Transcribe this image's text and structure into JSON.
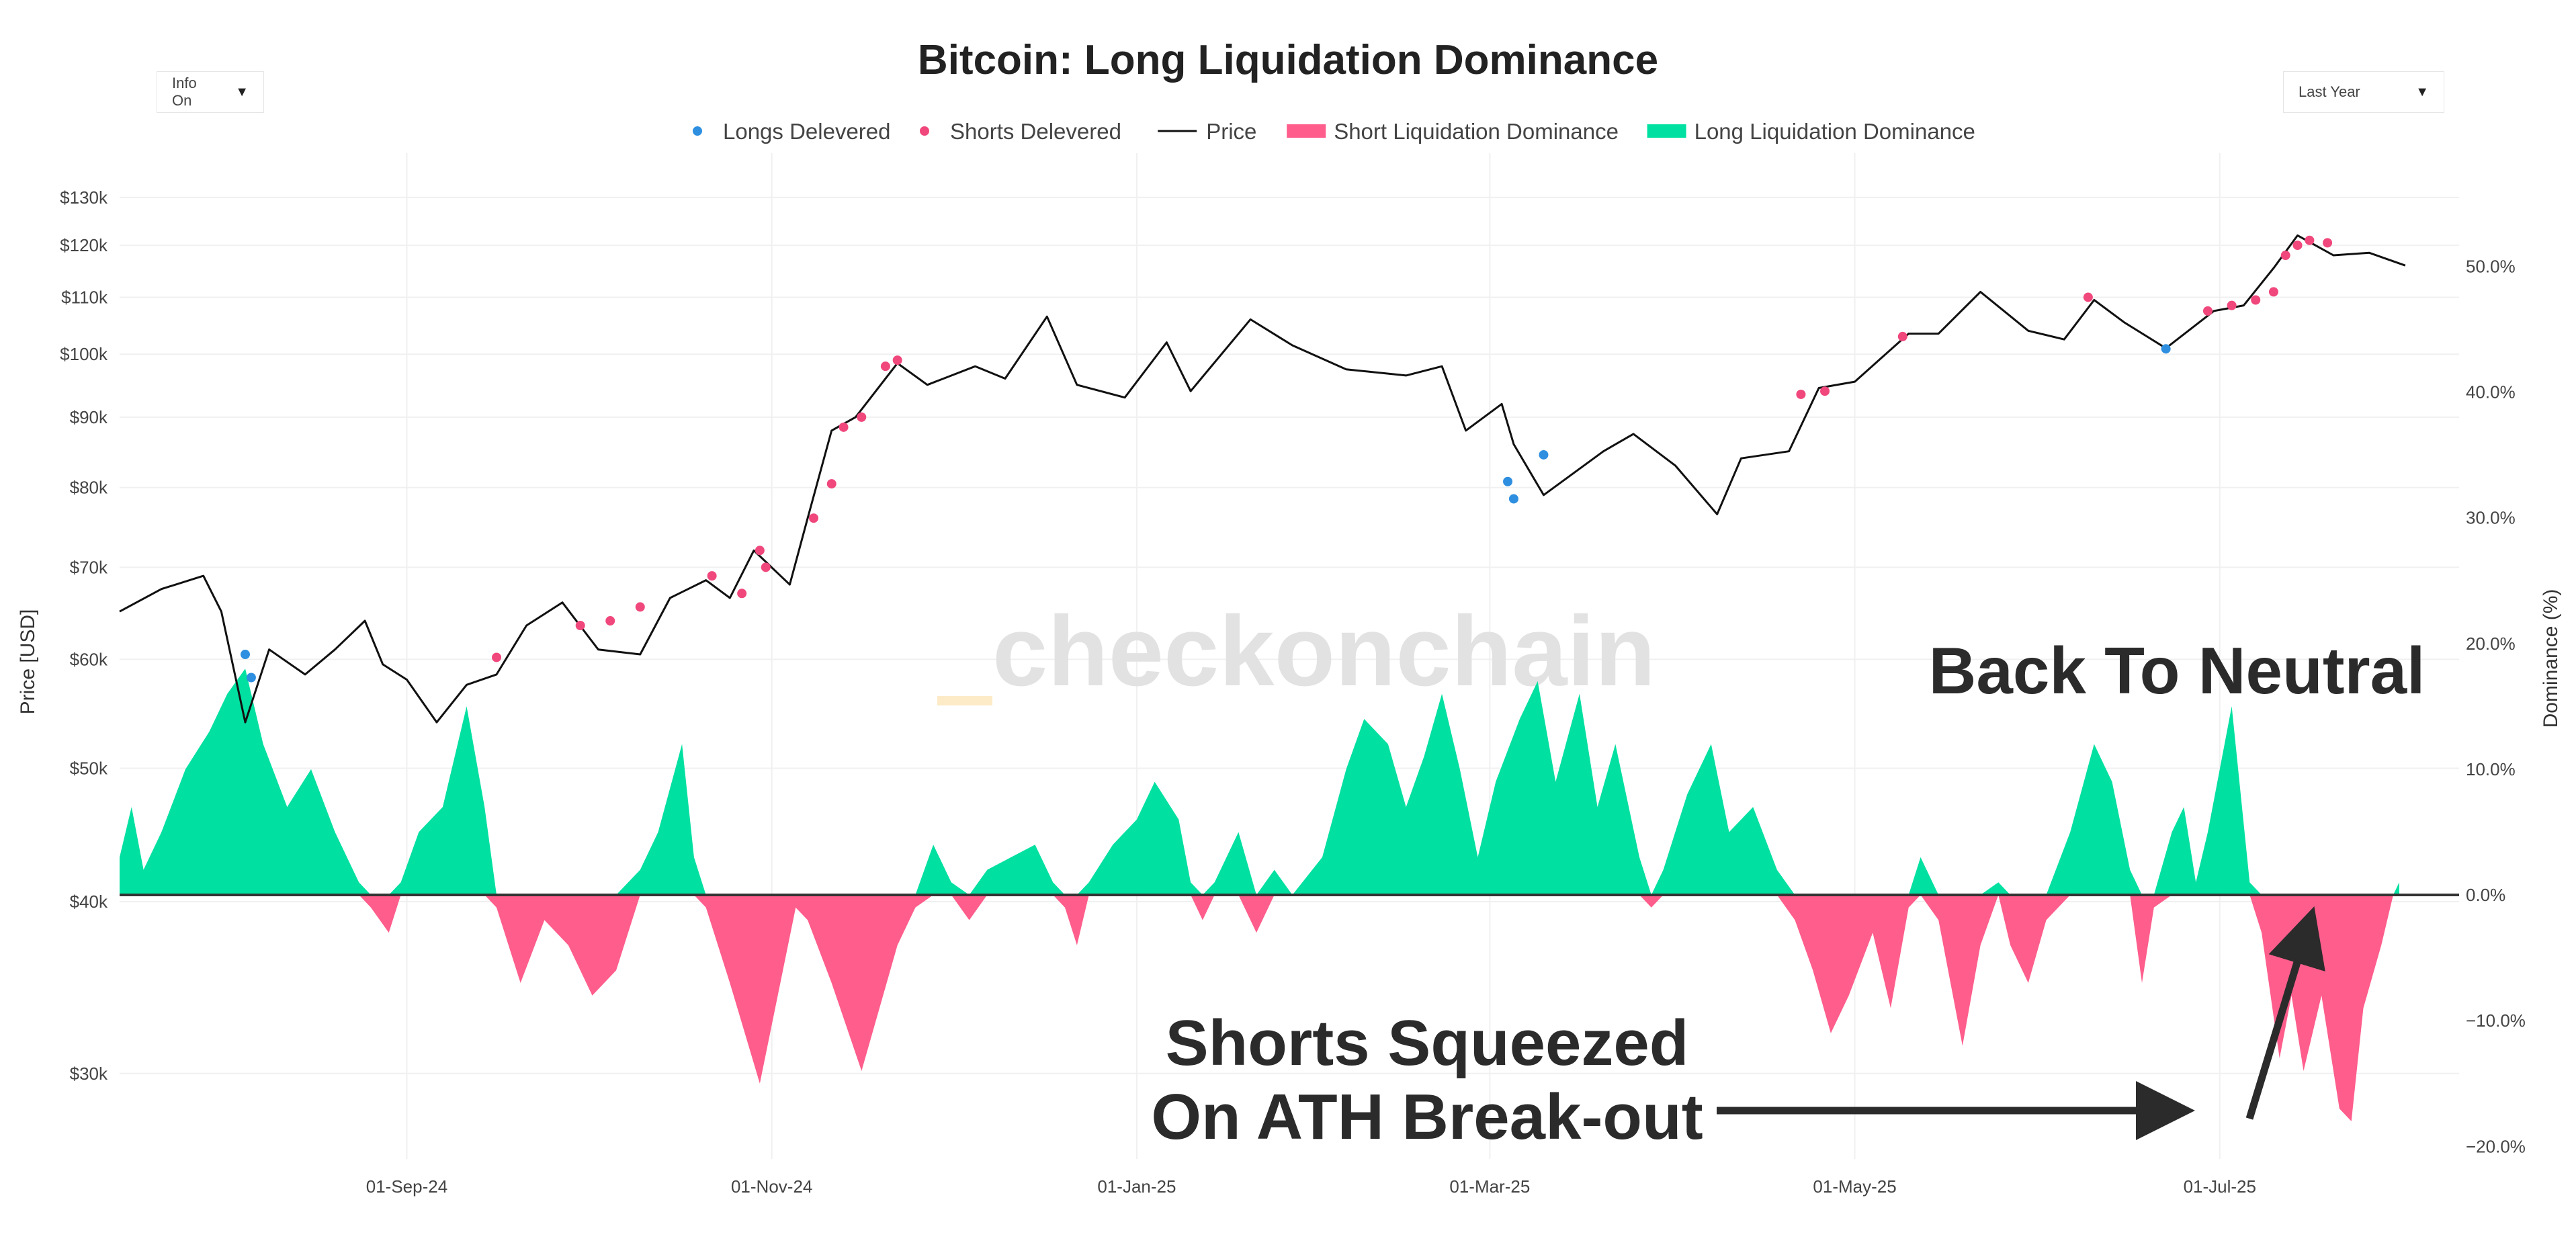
{
  "controls": {
    "info_dropdown": {
      "label": "Info On",
      "caret": "▼"
    },
    "range_dropdown": {
      "label": "Last Year",
      "caret": "▼"
    }
  },
  "watermark": {
    "text": "checkonchain",
    "accent_color": "#fdebc8"
  },
  "annotations": {
    "back_to_neutral": "Back To Neutral",
    "shorts_squeezed_line1": "Shorts Squeezed",
    "shorts_squeezed_line2": "On ATH Break-out"
  },
  "colors": {
    "price": "#111111",
    "longs_delivered": "#2e8fe0",
    "shorts_delivered": "#f0477c",
    "short_dominance": "#ff5d8c",
    "long_dominance": "#00e0a1",
    "grid": "#f0f0f0",
    "zero_line": "#333333",
    "annotation": "#2b2b2b"
  },
  "chart_data": {
    "type": "line",
    "title": "Bitcoin: Long Liquidation Dominance",
    "ylabel": "Price [USD]",
    "y2label": "Dominance (%)",
    "yscale": "log",
    "ylim": [
      26000,
      140000
    ],
    "y2lim": [
      -21,
      59
    ],
    "x_start": "2024-07-15",
    "x_end": "2025-08-10",
    "x_ticks": [
      {
        "date": "2024-09-01",
        "label": "01-Sep-24"
      },
      {
        "date": "2024-11-01",
        "label": "01-Nov-24"
      },
      {
        "date": "2025-01-01",
        "label": "01-Jan-25"
      },
      {
        "date": "2025-03-01",
        "label": "01-Mar-25"
      },
      {
        "date": "2025-05-01",
        "label": "01-May-25"
      },
      {
        "date": "2025-07-01",
        "label": "01-Jul-25"
      }
    ],
    "y_ticks": [
      {
        "value": 30000,
        "label": "$30k"
      },
      {
        "value": 40000,
        "label": "$40k"
      },
      {
        "value": 50000,
        "label": "$50k"
      },
      {
        "value": 60000,
        "label": "$60k"
      },
      {
        "value": 70000,
        "label": "$70k"
      },
      {
        "value": 80000,
        "label": "$80k"
      },
      {
        "value": 90000,
        "label": "$90k"
      },
      {
        "value": 100000,
        "label": "$100k"
      },
      {
        "value": 110000,
        "label": "$110k"
      },
      {
        "value": 120000,
        "label": "$120k"
      },
      {
        "value": 130000,
        "label": "$130k"
      }
    ],
    "y2_ticks": [
      {
        "value": -20,
        "label": "−20.0%"
      },
      {
        "value": -10,
        "label": "−10.0%"
      },
      {
        "value": 0,
        "label": "0.0%"
      },
      {
        "value": 10,
        "label": "10.0%"
      },
      {
        "value": 20,
        "label": "20.0%"
      },
      {
        "value": 30,
        "label": "30.0%"
      },
      {
        "value": 40,
        "label": "40.0%"
      },
      {
        "value": 50,
        "label": "50.0%"
      }
    ],
    "legend": [
      {
        "label": "Longs Delevered",
        "symbol": "dot",
        "color": "#2e8fe0"
      },
      {
        "label": "Shorts Delevered",
        "symbol": "dot",
        "color": "#f0477c"
      },
      {
        "label": "Price",
        "symbol": "line",
        "color": "#111111"
      },
      {
        "label": "Short Liquidation Dominance",
        "symbol": "bar",
        "color": "#ff5d8c"
      },
      {
        "label": "Long Liquidation Dominance",
        "symbol": "bar",
        "color": "#00e0a1"
      }
    ],
    "price_series": [
      [
        "2024-07-15",
        65000
      ],
      [
        "2024-07-22",
        67500
      ],
      [
        "2024-07-29",
        69000
      ],
      [
        "2024-08-01",
        65000
      ],
      [
        "2024-08-05",
        54000
      ],
      [
        "2024-08-09",
        61000
      ],
      [
        "2024-08-15",
        58500
      ],
      [
        "2024-08-20",
        61000
      ],
      [
        "2024-08-25",
        64000
      ],
      [
        "2024-08-28",
        59500
      ],
      [
        "2024-09-01",
        58000
      ],
      [
        "2024-09-06",
        54000
      ],
      [
        "2024-09-11",
        57500
      ],
      [
        "2024-09-16",
        58500
      ],
      [
        "2024-09-21",
        63500
      ],
      [
        "2024-09-27",
        66000
      ],
      [
        "2024-10-03",
        61000
      ],
      [
        "2024-10-10",
        60500
      ],
      [
        "2024-10-15",
        66500
      ],
      [
        "2024-10-21",
        68500
      ],
      [
        "2024-10-25",
        66500
      ],
      [
        "2024-10-29",
        72000
      ],
      [
        "2024-11-04",
        68000
      ],
      [
        "2024-11-07",
        76000
      ],
      [
        "2024-11-11",
        88000
      ],
      [
        "2024-11-15",
        90000
      ],
      [
        "2024-11-22",
        98500
      ],
      [
        "2024-11-27",
        95000
      ],
      [
        "2024-12-05",
        98000
      ],
      [
        "2024-12-10",
        96000
      ],
      [
        "2024-12-17",
        106500
      ],
      [
        "2024-12-22",
        95000
      ],
      [
        "2024-12-30",
        93000
      ],
      [
        "2025-01-06",
        102000
      ],
      [
        "2025-01-10",
        94000
      ],
      [
        "2025-01-20",
        106000
      ],
      [
        "2025-01-27",
        101500
      ],
      [
        "2025-02-05",
        97500
      ],
      [
        "2025-02-15",
        96500
      ],
      [
        "2025-02-21",
        98000
      ],
      [
        "2025-02-25",
        88000
      ],
      [
        "2025-03-03",
        92000
      ],
      [
        "2025-03-05",
        86000
      ],
      [
        "2025-03-10",
        79000
      ],
      [
        "2025-03-20",
        85000
      ],
      [
        "2025-03-25",
        87500
      ],
      [
        "2025-04-01",
        83000
      ],
      [
        "2025-04-08",
        76500
      ],
      [
        "2025-04-12",
        84000
      ],
      [
        "2025-04-20",
        85000
      ],
      [
        "2025-04-25",
        94500
      ],
      [
        "2025-05-01",
        95500
      ],
      [
        "2025-05-10",
        103500
      ],
      [
        "2025-05-15",
        103500
      ],
      [
        "2025-05-22",
        111000
      ],
      [
        "2025-05-30",
        104000
      ],
      [
        "2025-06-05",
        102500
      ],
      [
        "2025-06-10",
        109500
      ],
      [
        "2025-06-15",
        105500
      ],
      [
        "2025-06-22",
        101000
      ],
      [
        "2025-06-30",
        107500
      ],
      [
        "2025-07-05",
        108500
      ],
      [
        "2025-07-10",
        115500
      ],
      [
        "2025-07-14",
        122000
      ],
      [
        "2025-07-20",
        118000
      ],
      [
        "2025-07-26",
        118500
      ],
      [
        "2025-08-01",
        116000
      ]
    ],
    "dominance_series": [
      [
        "2024-07-15",
        3
      ],
      [
        "2024-07-17",
        7
      ],
      [
        "2024-07-19",
        2
      ],
      [
        "2024-07-22",
        5
      ],
      [
        "2024-07-26",
        10
      ],
      [
        "2024-07-30",
        13
      ],
      [
        "2024-08-02",
        16
      ],
      [
        "2024-08-05",
        18
      ],
      [
        "2024-08-08",
        12
      ],
      [
        "2024-08-12",
        7
      ],
      [
        "2024-08-16",
        10
      ],
      [
        "2024-08-20",
        5
      ],
      [
        "2024-08-24",
        1
      ],
      [
        "2024-08-26",
        -1
      ],
      [
        "2024-08-29",
        -3
      ],
      [
        "2024-08-31",
        1
      ],
      [
        "2024-09-03",
        5
      ],
      [
        "2024-09-07",
        7
      ],
      [
        "2024-09-11",
        15
      ],
      [
        "2024-09-14",
        7
      ],
      [
        "2024-09-16",
        -1
      ],
      [
        "2024-09-20",
        -7
      ],
      [
        "2024-09-24",
        -2
      ],
      [
        "2024-09-28",
        -4
      ],
      [
        "2024-10-02",
        -8
      ],
      [
        "2024-10-06",
        -6
      ],
      [
        "2024-10-10",
        2
      ],
      [
        "2024-10-13",
        5
      ],
      [
        "2024-10-17",
        12
      ],
      [
        "2024-10-19",
        3
      ],
      [
        "2024-10-21",
        -1
      ],
      [
        "2024-10-25",
        -7
      ],
      [
        "2024-10-30",
        -15
      ],
      [
        "2024-11-02",
        -8
      ],
      [
        "2024-11-05",
        -1
      ],
      [
        "2024-11-07",
        -2
      ],
      [
        "2024-11-11",
        -7
      ],
      [
        "2024-11-16",
        -14
      ],
      [
        "2024-11-22",
        -4
      ],
      [
        "2024-11-25",
        -1
      ],
      [
        "2024-11-28",
        4
      ],
      [
        "2024-12-01",
        1
      ],
      [
        "2024-12-04",
        -2
      ],
      [
        "2024-12-07",
        2
      ],
      [
        "2024-12-11",
        3
      ],
      [
        "2024-12-15",
        4
      ],
      [
        "2024-12-18",
        1
      ],
      [
        "2024-12-20",
        -1
      ],
      [
        "2024-12-22",
        -4
      ],
      [
        "2024-12-24",
        1
      ],
      [
        "2024-12-28",
        4
      ],
      [
        "2025-01-01",
        6
      ],
      [
        "2025-01-04",
        9
      ],
      [
        "2025-01-08",
        6
      ],
      [
        "2025-01-10",
        1
      ],
      [
        "2025-01-12",
        -2
      ],
      [
        "2025-01-14",
        1
      ],
      [
        "2025-01-18",
        5
      ],
      [
        "2025-01-21",
        -3
      ],
      [
        "2025-01-24",
        2
      ],
      [
        "2025-01-27",
        0
      ],
      [
        "2025-02-01",
        3
      ],
      [
        "2025-02-05",
        10
      ],
      [
        "2025-02-08",
        14
      ],
      [
        "2025-02-12",
        12
      ],
      [
        "2025-02-15",
        7
      ],
      [
        "2025-02-18",
        11
      ],
      [
        "2025-02-21",
        16
      ],
      [
        "2025-02-24",
        10
      ],
      [
        "2025-02-27",
        3
      ],
      [
        "2025-03-02",
        9
      ],
      [
        "2025-03-06",
        14
      ],
      [
        "2025-03-09",
        17
      ],
      [
        "2025-03-12",
        9
      ],
      [
        "2025-03-16",
        16
      ],
      [
        "2025-03-19",
        7
      ],
      [
        "2025-03-22",
        12
      ],
      [
        "2025-03-26",
        3
      ],
      [
        "2025-03-28",
        -1
      ],
      [
        "2025-03-30",
        2
      ],
      [
        "2025-04-03",
        8
      ],
      [
        "2025-04-07",
        12
      ],
      [
        "2025-04-10",
        5
      ],
      [
        "2025-04-14",
        7
      ],
      [
        "2025-04-18",
        2
      ],
      [
        "2025-04-21",
        -2
      ],
      [
        "2025-04-24",
        -6
      ],
      [
        "2025-04-27",
        -11
      ],
      [
        "2025-04-30",
        -8
      ],
      [
        "2025-05-04",
        -3
      ],
      [
        "2025-05-07",
        -9
      ],
      [
        "2025-05-10",
        -1
      ],
      [
        "2025-05-12",
        3
      ],
      [
        "2025-05-15",
        -2
      ],
      [
        "2025-05-19",
        -12
      ],
      [
        "2025-05-22",
        -4
      ],
      [
        "2025-05-25",
        1
      ],
      [
        "2025-05-27",
        -4
      ],
      [
        "2025-05-30",
        -7
      ],
      [
        "2025-06-02",
        -2
      ],
      [
        "2025-06-06",
        5
      ],
      [
        "2025-06-10",
        12
      ],
      [
        "2025-06-13",
        9
      ],
      [
        "2025-06-16",
        2
      ],
      [
        "2025-06-18",
        -7
      ],
      [
        "2025-06-20",
        -1
      ],
      [
        "2025-06-23",
        5
      ],
      [
        "2025-06-25",
        7
      ],
      [
        "2025-06-27",
        1
      ],
      [
        "2025-06-29",
        5
      ],
      [
        "2025-07-03",
        15
      ],
      [
        "2025-07-06",
        1
      ],
      [
        "2025-07-08",
        -3
      ],
      [
        "2025-07-11",
        -13
      ],
      [
        "2025-07-13",
        -8
      ],
      [
        "2025-07-15",
        -14
      ],
      [
        "2025-07-18",
        -8
      ],
      [
        "2025-07-21",
        -17
      ],
      [
        "2025-07-23",
        -18
      ],
      [
        "2025-07-25",
        -9
      ],
      [
        "2025-07-28",
        -4
      ],
      [
        "2025-07-30",
        0
      ],
      [
        "2025-07-31",
        1
      ]
    ],
    "longs_delevered_points": [
      [
        "2024-08-05",
        60500
      ],
      [
        "2024-08-06",
        58200
      ],
      [
        "2025-03-10",
        84500
      ],
      [
        "2025-03-04",
        80800
      ],
      [
        "2025-03-05",
        78500
      ],
      [
        "2025-06-22",
        100900
      ]
    ],
    "shorts_delevered_points": [
      [
        "2024-09-16",
        60200
      ],
      [
        "2024-09-30",
        63500
      ],
      [
        "2024-10-05",
        64000
      ],
      [
        "2024-10-10",
        65500
      ],
      [
        "2024-10-22",
        69000
      ],
      [
        "2024-10-27",
        67000
      ],
      [
        "2024-10-30",
        72000
      ],
      [
        "2024-10-31",
        70000
      ],
      [
        "2024-11-08",
        76000
      ],
      [
        "2024-11-11",
        80500
      ],
      [
        "2024-11-13",
        88500
      ],
      [
        "2024-11-16",
        90000
      ],
      [
        "2024-11-20",
        98000
      ],
      [
        "2024-11-22",
        99000
      ],
      [
        "2025-04-22",
        93500
      ],
      [
        "2025-04-26",
        94000
      ],
      [
        "2025-05-09",
        103000
      ],
      [
        "2025-06-09",
        110000
      ],
      [
        "2025-06-29",
        107500
      ],
      [
        "2025-07-03",
        108500
      ],
      [
        "2025-07-07",
        109500
      ],
      [
        "2025-07-10",
        111000
      ],
      [
        "2025-07-12",
        118000
      ],
      [
        "2025-07-14",
        120000
      ],
      [
        "2025-07-16",
        121000
      ],
      [
        "2025-07-19",
        120500
      ]
    ]
  }
}
